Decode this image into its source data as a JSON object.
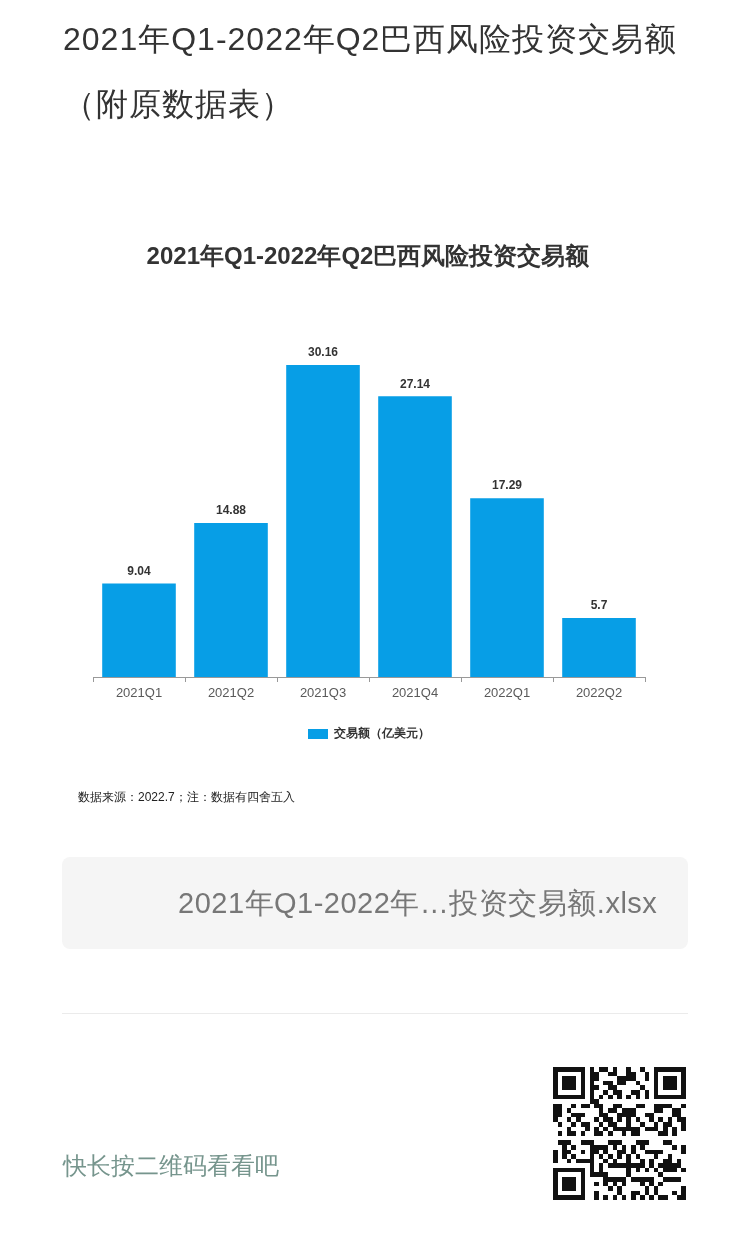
{
  "chart_data": {
    "type": "bar",
    "title": "2021年Q1-2022年Q2巴西风险投资交易额",
    "categories": [
      "2021Q1",
      "2021Q2",
      "2021Q3",
      "2021Q4",
      "2022Q1",
      "2022Q2"
    ],
    "series": [
      {
        "name": "交易额（亿美元）",
        "color": "#079ee6",
        "values": [
          9.04,
          14.88,
          30.16,
          27.14,
          17.29,
          5.7
        ]
      }
    ],
    "data_labels": true,
    "legend": "bottom",
    "grid": false,
    "tick_labels": "x",
    "annotations": [
      "2021年Q1-2022年Q2巴西风险投资交易额（附原数据表）",
      "数据来源：2022.7；注：数据有四舍五入",
      "2021年Q1-2022年…投资交易额.xlsx",
      "快长按二维码看看吧"
    ]
  }
}
